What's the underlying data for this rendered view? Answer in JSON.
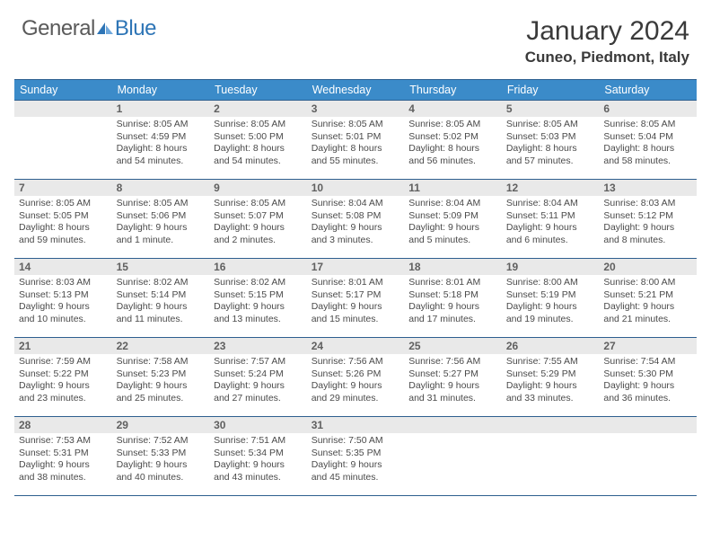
{
  "brand": {
    "text_grey": "General",
    "text_blue": "Blue",
    "accent_color": "#2e75b6"
  },
  "header": {
    "month_year": "January 2024",
    "location": "Cuneo, Piedmont, Italy"
  },
  "theme": {
    "header_bg": "#3b8bc9",
    "header_border": "#2e5f8f",
    "daynum_bg": "#e9e9e9",
    "text_color": "#3a3a3a"
  },
  "weekdays": [
    "Sunday",
    "Monday",
    "Tuesday",
    "Wednesday",
    "Thursday",
    "Friday",
    "Saturday"
  ],
  "weeks": [
    [
      null,
      {
        "n": "1",
        "sr": "8:05 AM",
        "ss": "4:59 PM",
        "dl": "8 hours and 54 minutes."
      },
      {
        "n": "2",
        "sr": "8:05 AM",
        "ss": "5:00 PM",
        "dl": "8 hours and 54 minutes."
      },
      {
        "n": "3",
        "sr": "8:05 AM",
        "ss": "5:01 PM",
        "dl": "8 hours and 55 minutes."
      },
      {
        "n": "4",
        "sr": "8:05 AM",
        "ss": "5:02 PM",
        "dl": "8 hours and 56 minutes."
      },
      {
        "n": "5",
        "sr": "8:05 AM",
        "ss": "5:03 PM",
        "dl": "8 hours and 57 minutes."
      },
      {
        "n": "6",
        "sr": "8:05 AM",
        "ss": "5:04 PM",
        "dl": "8 hours and 58 minutes."
      }
    ],
    [
      {
        "n": "7",
        "sr": "8:05 AM",
        "ss": "5:05 PM",
        "dl": "8 hours and 59 minutes."
      },
      {
        "n": "8",
        "sr": "8:05 AM",
        "ss": "5:06 PM",
        "dl": "9 hours and 1 minute."
      },
      {
        "n": "9",
        "sr": "8:05 AM",
        "ss": "5:07 PM",
        "dl": "9 hours and 2 minutes."
      },
      {
        "n": "10",
        "sr": "8:04 AM",
        "ss": "5:08 PM",
        "dl": "9 hours and 3 minutes."
      },
      {
        "n": "11",
        "sr": "8:04 AM",
        "ss": "5:09 PM",
        "dl": "9 hours and 5 minutes."
      },
      {
        "n": "12",
        "sr": "8:04 AM",
        "ss": "5:11 PM",
        "dl": "9 hours and 6 minutes."
      },
      {
        "n": "13",
        "sr": "8:03 AM",
        "ss": "5:12 PM",
        "dl": "9 hours and 8 minutes."
      }
    ],
    [
      {
        "n": "14",
        "sr": "8:03 AM",
        "ss": "5:13 PM",
        "dl": "9 hours and 10 minutes."
      },
      {
        "n": "15",
        "sr": "8:02 AM",
        "ss": "5:14 PM",
        "dl": "9 hours and 11 minutes."
      },
      {
        "n": "16",
        "sr": "8:02 AM",
        "ss": "5:15 PM",
        "dl": "9 hours and 13 minutes."
      },
      {
        "n": "17",
        "sr": "8:01 AM",
        "ss": "5:17 PM",
        "dl": "9 hours and 15 minutes."
      },
      {
        "n": "18",
        "sr": "8:01 AM",
        "ss": "5:18 PM",
        "dl": "9 hours and 17 minutes."
      },
      {
        "n": "19",
        "sr": "8:00 AM",
        "ss": "5:19 PM",
        "dl": "9 hours and 19 minutes."
      },
      {
        "n": "20",
        "sr": "8:00 AM",
        "ss": "5:21 PM",
        "dl": "9 hours and 21 minutes."
      }
    ],
    [
      {
        "n": "21",
        "sr": "7:59 AM",
        "ss": "5:22 PM",
        "dl": "9 hours and 23 minutes."
      },
      {
        "n": "22",
        "sr": "7:58 AM",
        "ss": "5:23 PM",
        "dl": "9 hours and 25 minutes."
      },
      {
        "n": "23",
        "sr": "7:57 AM",
        "ss": "5:24 PM",
        "dl": "9 hours and 27 minutes."
      },
      {
        "n": "24",
        "sr": "7:56 AM",
        "ss": "5:26 PM",
        "dl": "9 hours and 29 minutes."
      },
      {
        "n": "25",
        "sr": "7:56 AM",
        "ss": "5:27 PM",
        "dl": "9 hours and 31 minutes."
      },
      {
        "n": "26",
        "sr": "7:55 AM",
        "ss": "5:29 PM",
        "dl": "9 hours and 33 minutes."
      },
      {
        "n": "27",
        "sr": "7:54 AM",
        "ss": "5:30 PM",
        "dl": "9 hours and 36 minutes."
      }
    ],
    [
      {
        "n": "28",
        "sr": "7:53 AM",
        "ss": "5:31 PM",
        "dl": "9 hours and 38 minutes."
      },
      {
        "n": "29",
        "sr": "7:52 AM",
        "ss": "5:33 PM",
        "dl": "9 hours and 40 minutes."
      },
      {
        "n": "30",
        "sr": "7:51 AM",
        "ss": "5:34 PM",
        "dl": "9 hours and 43 minutes."
      },
      {
        "n": "31",
        "sr": "7:50 AM",
        "ss": "5:35 PM",
        "dl": "9 hours and 45 minutes."
      },
      null,
      null,
      null
    ]
  ],
  "labels": {
    "sunrise": "Sunrise:",
    "sunset": "Sunset:",
    "daylight": "Daylight:"
  }
}
